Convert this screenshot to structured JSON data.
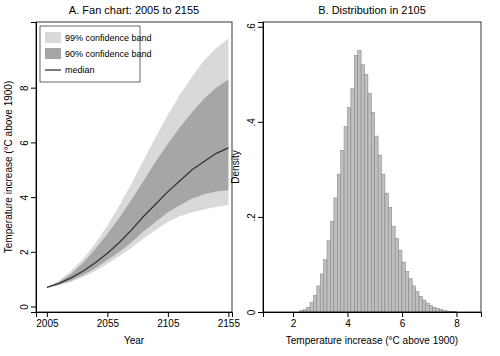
{
  "chart_data": [
    {
      "type": "line",
      "title": "A. Fan chart: 2005 to 2155",
      "xlabel": "Year",
      "ylabel": "Temperature increase (°C above 1900)",
      "x": [
        2005,
        2015,
        2025,
        2035,
        2045,
        2055,
        2065,
        2075,
        2085,
        2095,
        2105,
        2115,
        2125,
        2135,
        2145,
        2155
      ],
      "series": [
        {
          "name": "99% confidence band",
          "type": "area",
          "color": "#d9d9d9",
          "values": [
            0.7,
            0.95,
            1.3,
            1.75,
            2.3,
            2.95,
            3.7,
            4.5,
            5.35,
            6.2,
            7.0,
            7.75,
            8.4,
            9.0,
            9.45,
            9.8
          ],
          "lower": [
            0.7,
            0.78,
            0.9,
            1.08,
            1.3,
            1.55,
            1.85,
            2.15,
            2.5,
            2.8,
            3.1,
            3.3,
            3.45,
            3.55,
            3.65,
            3.7
          ]
        },
        {
          "name": "90% confidence band",
          "type": "area",
          "color": "#a6a6a6",
          "values": [
            0.7,
            0.9,
            1.2,
            1.6,
            2.1,
            2.65,
            3.25,
            3.9,
            4.6,
            5.3,
            5.95,
            6.55,
            7.1,
            7.6,
            8.0,
            8.3
          ],
          "lower": [
            0.7,
            0.8,
            0.95,
            1.15,
            1.4,
            1.7,
            2.0,
            2.35,
            2.75,
            3.1,
            3.45,
            3.7,
            3.95,
            4.1,
            4.2,
            4.25
          ]
        },
        {
          "name": "median",
          "type": "line",
          "color": "#333333",
          "values": [
            0.7,
            0.85,
            1.05,
            1.3,
            1.6,
            1.95,
            2.35,
            2.8,
            3.3,
            3.75,
            4.2,
            4.6,
            5.0,
            5.3,
            5.6,
            5.8
          ]
        }
      ],
      "xlim": [
        1996,
        2158
      ],
      "xticks": [
        2005,
        2055,
        2105,
        2155
      ],
      "ylim": [
        -0.2,
        10.4
      ],
      "yticks": [
        0,
        2,
        4,
        6,
        8
      ],
      "legend": "top-left"
    },
    {
      "type": "histogram",
      "title": "B. Distribution in 2105",
      "xlabel": "Temperature increase (°C above 1900)",
      "ylabel": "Density",
      "color": "#bfbfbf",
      "bins": [
        2.25,
        2.375,
        2.5,
        2.625,
        2.75,
        2.875,
        3,
        3.125,
        3.25,
        3.375,
        3.5,
        3.625,
        3.75,
        3.875,
        4,
        4.125,
        4.25,
        4.375,
        4.5,
        4.625,
        4.75,
        4.875,
        5,
        5.125,
        5.25,
        5.375,
        5.5,
        5.625,
        5.75,
        5.875,
        6,
        6.125,
        6.25,
        6.375,
        6.5,
        6.625,
        6.75,
        6.875,
        7,
        7.125,
        7.25,
        7.375,
        7.5,
        7.625,
        7.75,
        7.875,
        8
      ],
      "values": [
        0.003,
        0.005,
        0.01,
        0.02,
        0.035,
        0.055,
        0.08,
        0.11,
        0.15,
        0.19,
        0.24,
        0.29,
        0.34,
        0.39,
        0.43,
        0.47,
        0.54,
        0.55,
        0.52,
        0.5,
        0.46,
        0.42,
        0.37,
        0.33,
        0.29,
        0.25,
        0.22,
        0.18,
        0.155,
        0.13,
        0.105,
        0.085,
        0.07,
        0.055,
        0.043,
        0.033,
        0.025,
        0.019,
        0.014,
        0.01,
        0.007,
        0.005,
        0.003,
        0.002,
        0.0015,
        0.001
      ],
      "xlim": [
        0.9,
        8.9
      ],
      "xticks": [
        2,
        4,
        6,
        8
      ],
      "ylim": [
        0,
        0.61
      ],
      "yticks": [
        0,
        {
          "value": 0.2,
          "label": ".2"
        },
        {
          "value": 0.4,
          "label": ".4"
        },
        {
          "value": 0.6,
          "label": ".6"
        }
      ]
    }
  ]
}
